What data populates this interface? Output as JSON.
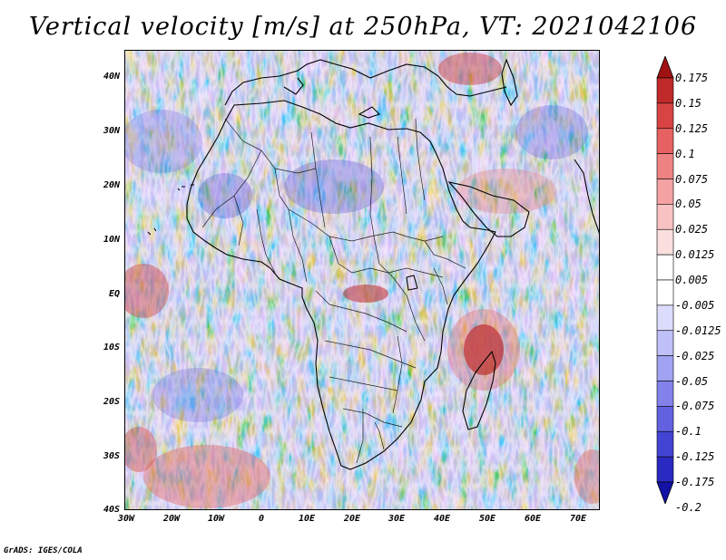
{
  "title": "Vertical velocity [m/s] at 250hPa, VT: 2021042106",
  "footer": "GrADS: IGES/COLA",
  "map": {
    "lon_range": [
      -30,
      75
    ],
    "lat_range": [
      -40,
      45
    ],
    "lat_labels": [
      "40N",
      "30N",
      "20N",
      "10N",
      "EQ",
      "10S",
      "20S",
      "30S",
      "40S"
    ],
    "lon_labels": [
      "30W",
      "20W",
      "10W",
      "0",
      "10E",
      "20E",
      "30E",
      "40E",
      "50E",
      "60E",
      "70E"
    ]
  },
  "colorbar": {
    "levels": [
      "0.175",
      "0.15",
      "0.125",
      "0.1",
      "0.075",
      "0.05",
      "0.025",
      "0.0125",
      "0.005",
      "-0.005",
      "-0.0125",
      "-0.025",
      "-0.05",
      "-0.075",
      "-0.1",
      "-0.125",
      "-0.175",
      "-0.2"
    ],
    "colors": [
      "#a01212",
      "#c02a2a",
      "#d84444",
      "#e66262",
      "#ee8282",
      "#f4a2a2",
      "#f8c2c2",
      "#fbdede",
      "#ffffff",
      "#ffffff",
      "#dcdcfc",
      "#c0c0f8",
      "#a2a2f2",
      "#8282ea",
      "#6262e0",
      "#4444d4",
      "#2a2ac2",
      "#1212a6"
    ]
  }
}
